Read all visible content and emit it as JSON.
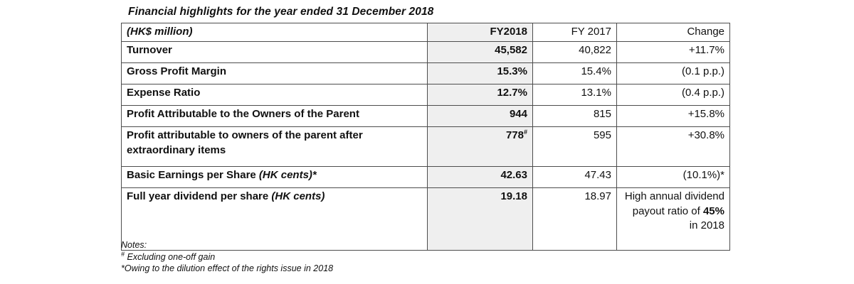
{
  "title": "Financial highlights for the year ended 31 December 2018",
  "table": {
    "header": {
      "label": "(HK$ million)",
      "fy2018": "FY2018",
      "fy2017": "FY 2017",
      "change": "Change"
    },
    "rows": [
      {
        "label": "Turnover",
        "label_italic": "",
        "fy2018": "45,582",
        "fy2018_sup": "",
        "fy2017": "40,822",
        "change_pre": "+11.7%",
        "change_bold": "",
        "change_post": ""
      },
      {
        "label": "Gross Profit Margin",
        "label_italic": "",
        "fy2018": "15.3%",
        "fy2018_sup": "",
        "fy2017": "15.4%",
        "change_pre": "(0.1 p.p.)",
        "change_bold": "",
        "change_post": ""
      },
      {
        "label": "Expense Ratio",
        "label_italic": "",
        "fy2018": "12.7%",
        "fy2018_sup": "",
        "fy2017": "13.1%",
        "change_pre": "(0.4 p.p.)",
        "change_bold": "",
        "change_post": ""
      },
      {
        "label": "Profit Attributable to the Owners of the Parent",
        "label_italic": "",
        "fy2018": "944",
        "fy2018_sup": "",
        "fy2017": "815",
        "change_pre": "+15.8%",
        "change_bold": "",
        "change_post": ""
      },
      {
        "label": "Profit attributable to owners of the parent after extraordinary items",
        "label_italic": "",
        "fy2018": "778",
        "fy2018_sup": "#",
        "fy2017": "595",
        "change_pre": "+30.8%",
        "change_bold": "",
        "change_post": ""
      },
      {
        "label": "Basic Earnings per Share ",
        "label_italic": "(HK cents)*",
        "fy2018": "42.63",
        "fy2018_sup": "",
        "fy2017": "47.43",
        "change_pre": "(10.1%)*",
        "change_bold": "",
        "change_post": ""
      },
      {
        "label": "Full year dividend per share ",
        "label_italic": "(HK cents)",
        "fy2018": "19.18",
        "fy2018_sup": "",
        "fy2017": "18.97",
        "change_pre": "High annual dividend payout ratio of ",
        "change_bold": "45%",
        "change_post": " in 2018"
      }
    ]
  },
  "notes": {
    "heading": "Notes:",
    "note1_sup": "#",
    "note1_text": " Excluding one-off gain",
    "note2": "*Owing to the dilution effect of the rights issue in 2018"
  },
  "colors": {
    "highlight_col_bg": "#efefef",
    "border_color": "#4d4d4d"
  }
}
